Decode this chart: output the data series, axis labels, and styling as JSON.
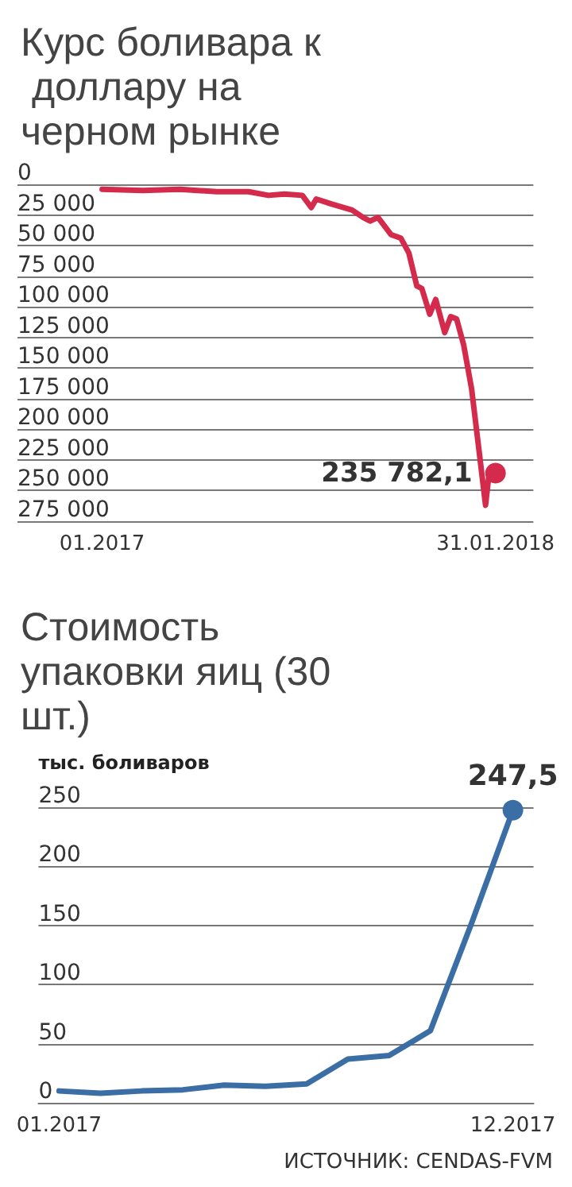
{
  "chart_data": [
    {
      "type": "line",
      "title": "Курс боливара к доллару на черном рынке",
      "x": [
        "2017-01-01",
        "2017-02-11",
        "2017-03-20",
        "2017-04-26",
        "2017-05-28",
        "2017-06-17",
        "2017-07-03",
        "2017-07-21",
        "2017-07-30",
        "2017-08-04",
        "2017-08-19",
        "2017-09-09",
        "2017-09-20",
        "2017-09-27",
        "2017-10-05",
        "2017-10-18",
        "2017-10-28",
        "2017-11-05",
        "2017-11-13",
        "2017-11-18",
        "2017-11-26",
        "2017-12-02",
        "2017-12-11",
        "2017-12-17",
        "2017-12-23",
        "2017-12-30",
        "2018-01-07",
        "2018-01-15",
        "2018-01-21",
        "2018-01-24",
        "2018-01-27",
        "2018-01-31"
      ],
      "series": [
        {
          "color": "#d42a4c",
          "values": [
            4000,
            5000,
            4000,
            6000,
            6000,
            9000,
            8000,
            9000,
            19000,
            12000,
            16000,
            21000,
            27000,
            30000,
            27000,
            41000,
            44000,
            56000,
            83000,
            85000,
            106000,
            94000,
            121000,
            108000,
            110000,
            131000,
            167000,
            221000,
            262000,
            240000,
            235000,
            235782.1
          ],
          "value_labels": [
            null,
            null,
            null,
            null,
            null,
            null,
            null,
            null,
            null,
            null,
            null,
            null,
            null,
            null,
            null,
            null,
            null,
            null,
            null,
            null,
            null,
            null,
            null,
            null,
            null,
            null,
            null,
            null,
            null,
            null,
            null,
            "235 782,1"
          ]
        }
      ],
      "xlim": [
        "2016-10-08",
        "2018-03-10"
      ],
      "xticks": [
        {
          "value": "2017-01-01",
          "label": "01.2017"
        },
        {
          "value": "2018-01-31",
          "label": "31.01.2018"
        }
      ],
      "ylim": [
        275000,
        0
      ],
      "yticks": [
        0,
        {
          "value": 25000,
          "label": "25 000"
        },
        {
          "value": 50000,
          "label": "50 000"
        },
        {
          "value": 75000,
          "label": "75 000"
        },
        {
          "value": 100000,
          "label": "100 000"
        },
        {
          "value": 125000,
          "label": "125 000"
        },
        {
          "value": 150000,
          "label": "150 000"
        },
        {
          "value": 175000,
          "label": "175 000"
        },
        {
          "value": 200000,
          "label": "200 000"
        },
        {
          "value": 225000,
          "label": "225 000"
        },
        {
          "value": 250000,
          "label": "250 000"
        },
        {
          "value": 275000,
          "label": "275 000"
        }
      ],
      "grid": "y",
      "line_style": "solid"
    },
    {
      "type": "line",
      "title": "Стоимость упаковки яиц (30 шт.)",
      "ylabel": "тыс. боливаров",
      "annotations": [
        "ИСТОЧНИК: CENDAS-FVM"
      ],
      "categories": [
        "01.2017",
        null,
        null,
        null,
        null,
        null,
        null,
        null,
        null,
        null,
        null,
        "12.2017"
      ],
      "series": [
        {
          "color": "#3a6ea5",
          "values": [
            10,
            8,
            10,
            11,
            15,
            14,
            16,
            37,
            40,
            61,
            152,
            247.5
          ],
          "value_labels": [
            null,
            null,
            null,
            null,
            null,
            null,
            null,
            null,
            null,
            null,
            null,
            "247,5"
          ]
        }
      ],
      "ylim": [
        0,
        250
      ],
      "yticks": [
        0,
        50,
        100,
        150,
        200,
        250
      ],
      "grid": "y",
      "line_style": "solid"
    }
  ]
}
